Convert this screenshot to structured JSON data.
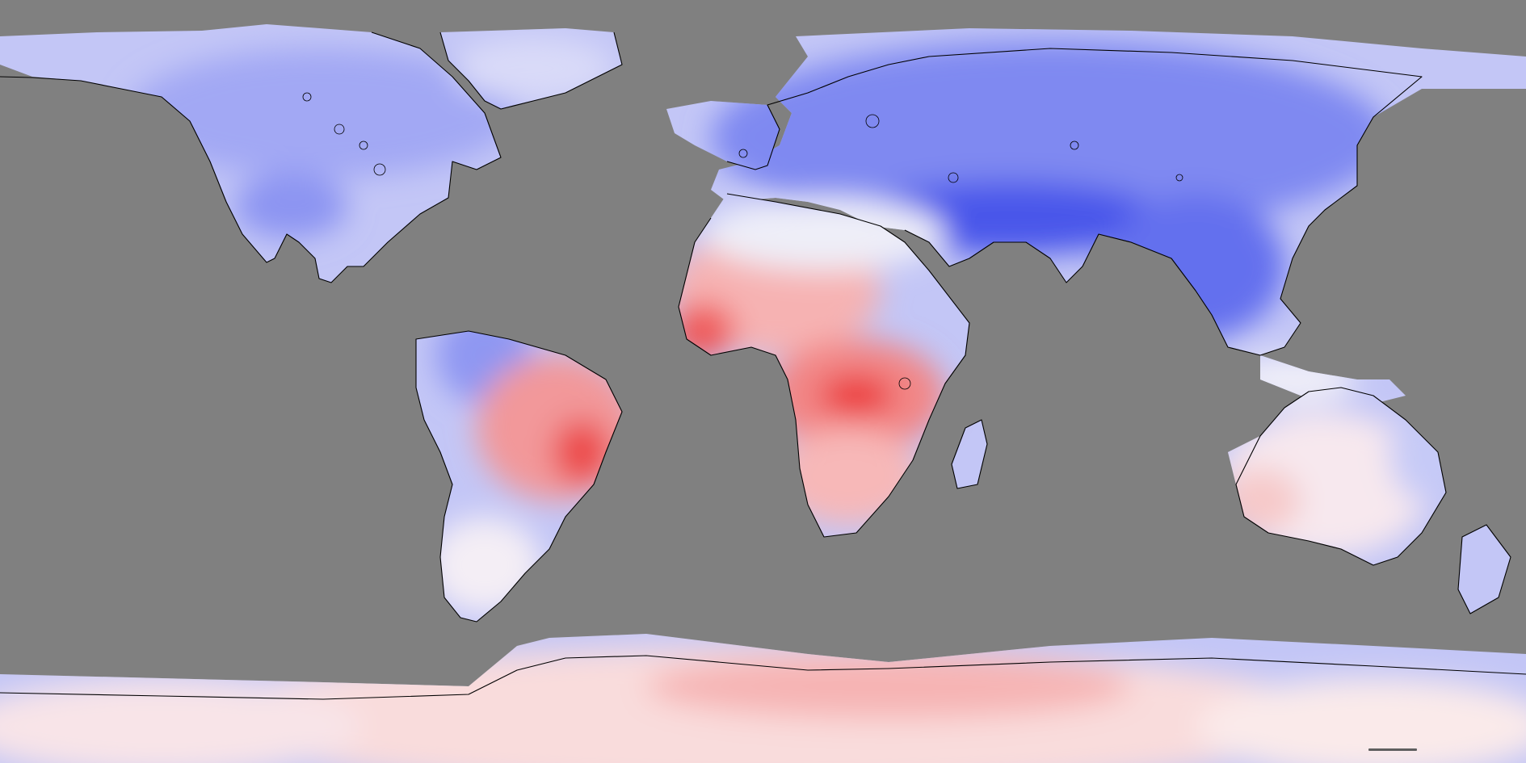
{
  "map": {
    "projection": "equirectangular",
    "extent": {
      "lon": [
        -180,
        180
      ],
      "lat": [
        -90,
        90
      ]
    },
    "colors": {
      "no_data": "#808080",
      "cold_strong": "#3a48e8",
      "cold_medium": "#7c86f0",
      "cold_light": "#b6bcf6",
      "neutral": "#f4f1f6",
      "warm_light": "#f8c4c4",
      "warm_medium": "#f29090",
      "warm_strong": "#ee3b3b",
      "coastline": "#000000"
    },
    "layers": [
      "anomaly-field",
      "coastlines"
    ]
  }
}
